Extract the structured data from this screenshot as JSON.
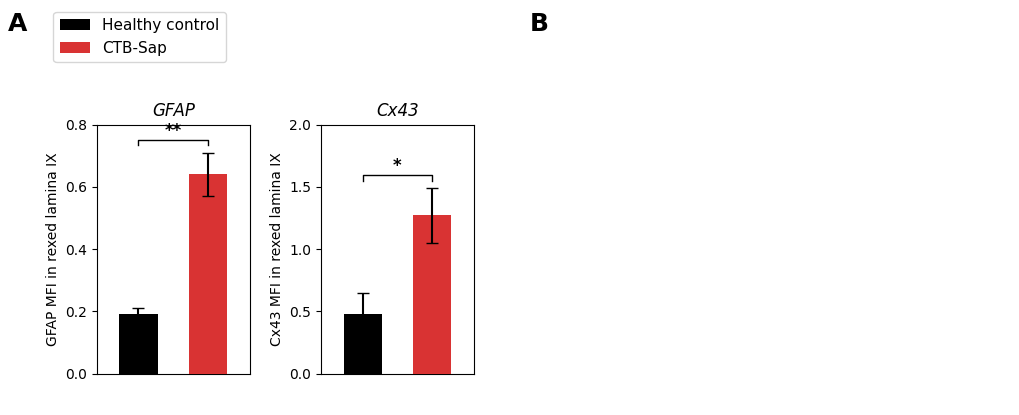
{
  "chart_data": [
    {
      "type": "bar",
      "title": "GFAP",
      "ylabel": "GFAP MFI in rexed lamina IX",
      "categories": [
        null
      ],
      "series": [
        {
          "name": "Healthy control",
          "color": "#000000",
          "values": [
            0.19
          ],
          "errors": [
            0.02
          ]
        },
        {
          "name": "CTB-Sap",
          "color": "#d93333",
          "values": [
            0.64
          ],
          "errors": [
            0.07
          ]
        }
      ],
      "ylim": [
        0.0,
        0.8
      ],
      "yticks": [
        0.0,
        0.2,
        0.4,
        0.6,
        0.8
      ],
      "annotations": [
        "**"
      ],
      "legend": "upper left"
    },
    {
      "type": "bar",
      "title": "Cx43",
      "ylabel": "Cx43 MFI in rexed lamina IX",
      "categories": [
        null
      ],
      "series": [
        {
          "name": "Healthy control",
          "color": "#000000",
          "values": [
            0.48
          ],
          "errors": [
            0.17
          ]
        },
        {
          "name": "CTB-Sap",
          "color": "#d93333",
          "values": [
            1.27
          ],
          "errors": [
            0.22
          ]
        }
      ],
      "ylim": [
        0.0,
        2.0
      ],
      "yticks": [
        0.0,
        0.5,
        1.0,
        1.5,
        2.0
      ],
      "annotations": [
        "*"
      ]
    }
  ],
  "annotations": [
    "A",
    "B"
  ]
}
